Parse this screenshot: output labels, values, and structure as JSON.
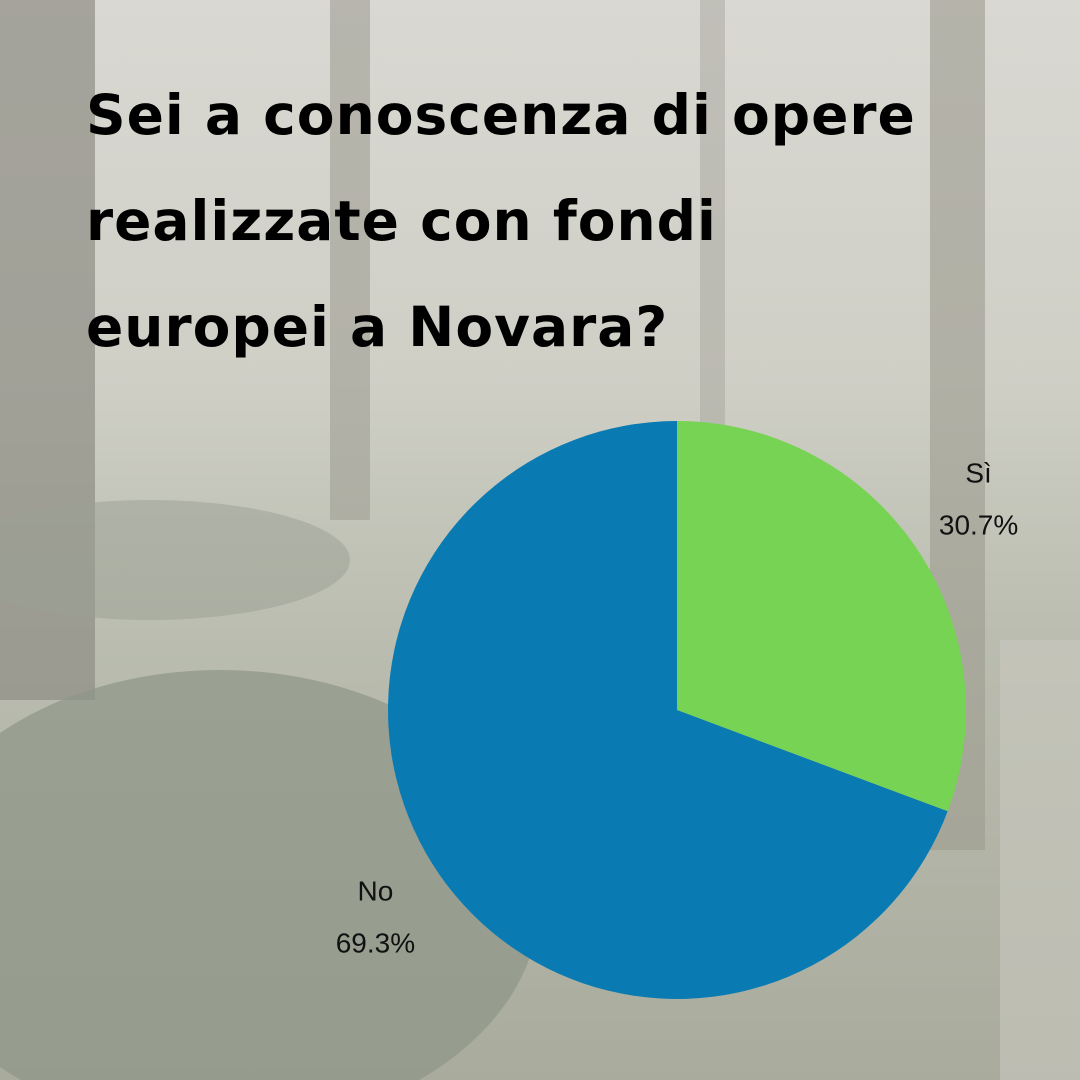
{
  "chart_data": {
    "type": "pie",
    "title": "Sei a conoscenza di opere realizzate con fondi europei a Novara?",
    "categories": [
      "Sì",
      "No"
    ],
    "values": [
      30.7,
      69.3
    ],
    "value_labels": [
      "30.7%",
      "69.3%"
    ],
    "colors": [
      "#77d353",
      "#0a7bb2"
    ]
  }
}
